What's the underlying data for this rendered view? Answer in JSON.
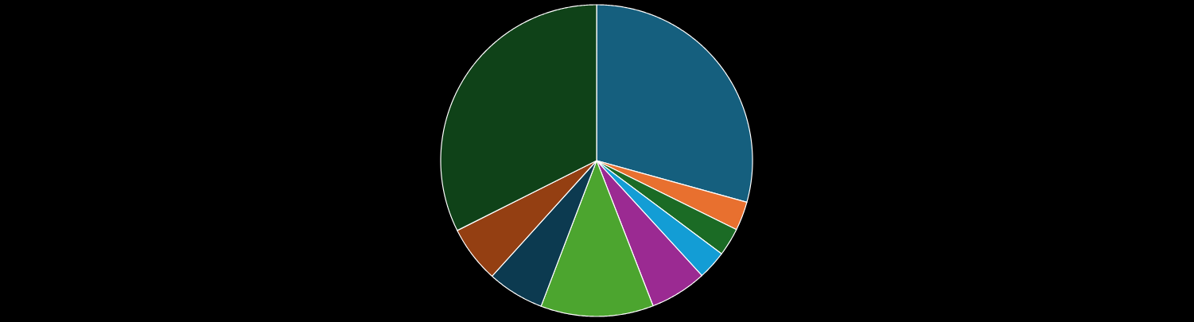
{
  "chart_data": {
    "type": "pie",
    "categories": [
      null,
      null,
      null,
      null,
      null,
      null,
      null,
      null,
      null
    ],
    "values": [
      29.3,
      3.0,
      2.9,
      3.0,
      5.9,
      11.7,
      5.9,
      5.9,
      32.4
    ],
    "colors": [
      "#155f7e",
      "#e8702f",
      "#1b6b25",
      "#139dd5",
      "#9b2a92",
      "#4ca52f",
      "#0c3a50",
      "#943f12",
      "#0f4218"
    ]
  }
}
